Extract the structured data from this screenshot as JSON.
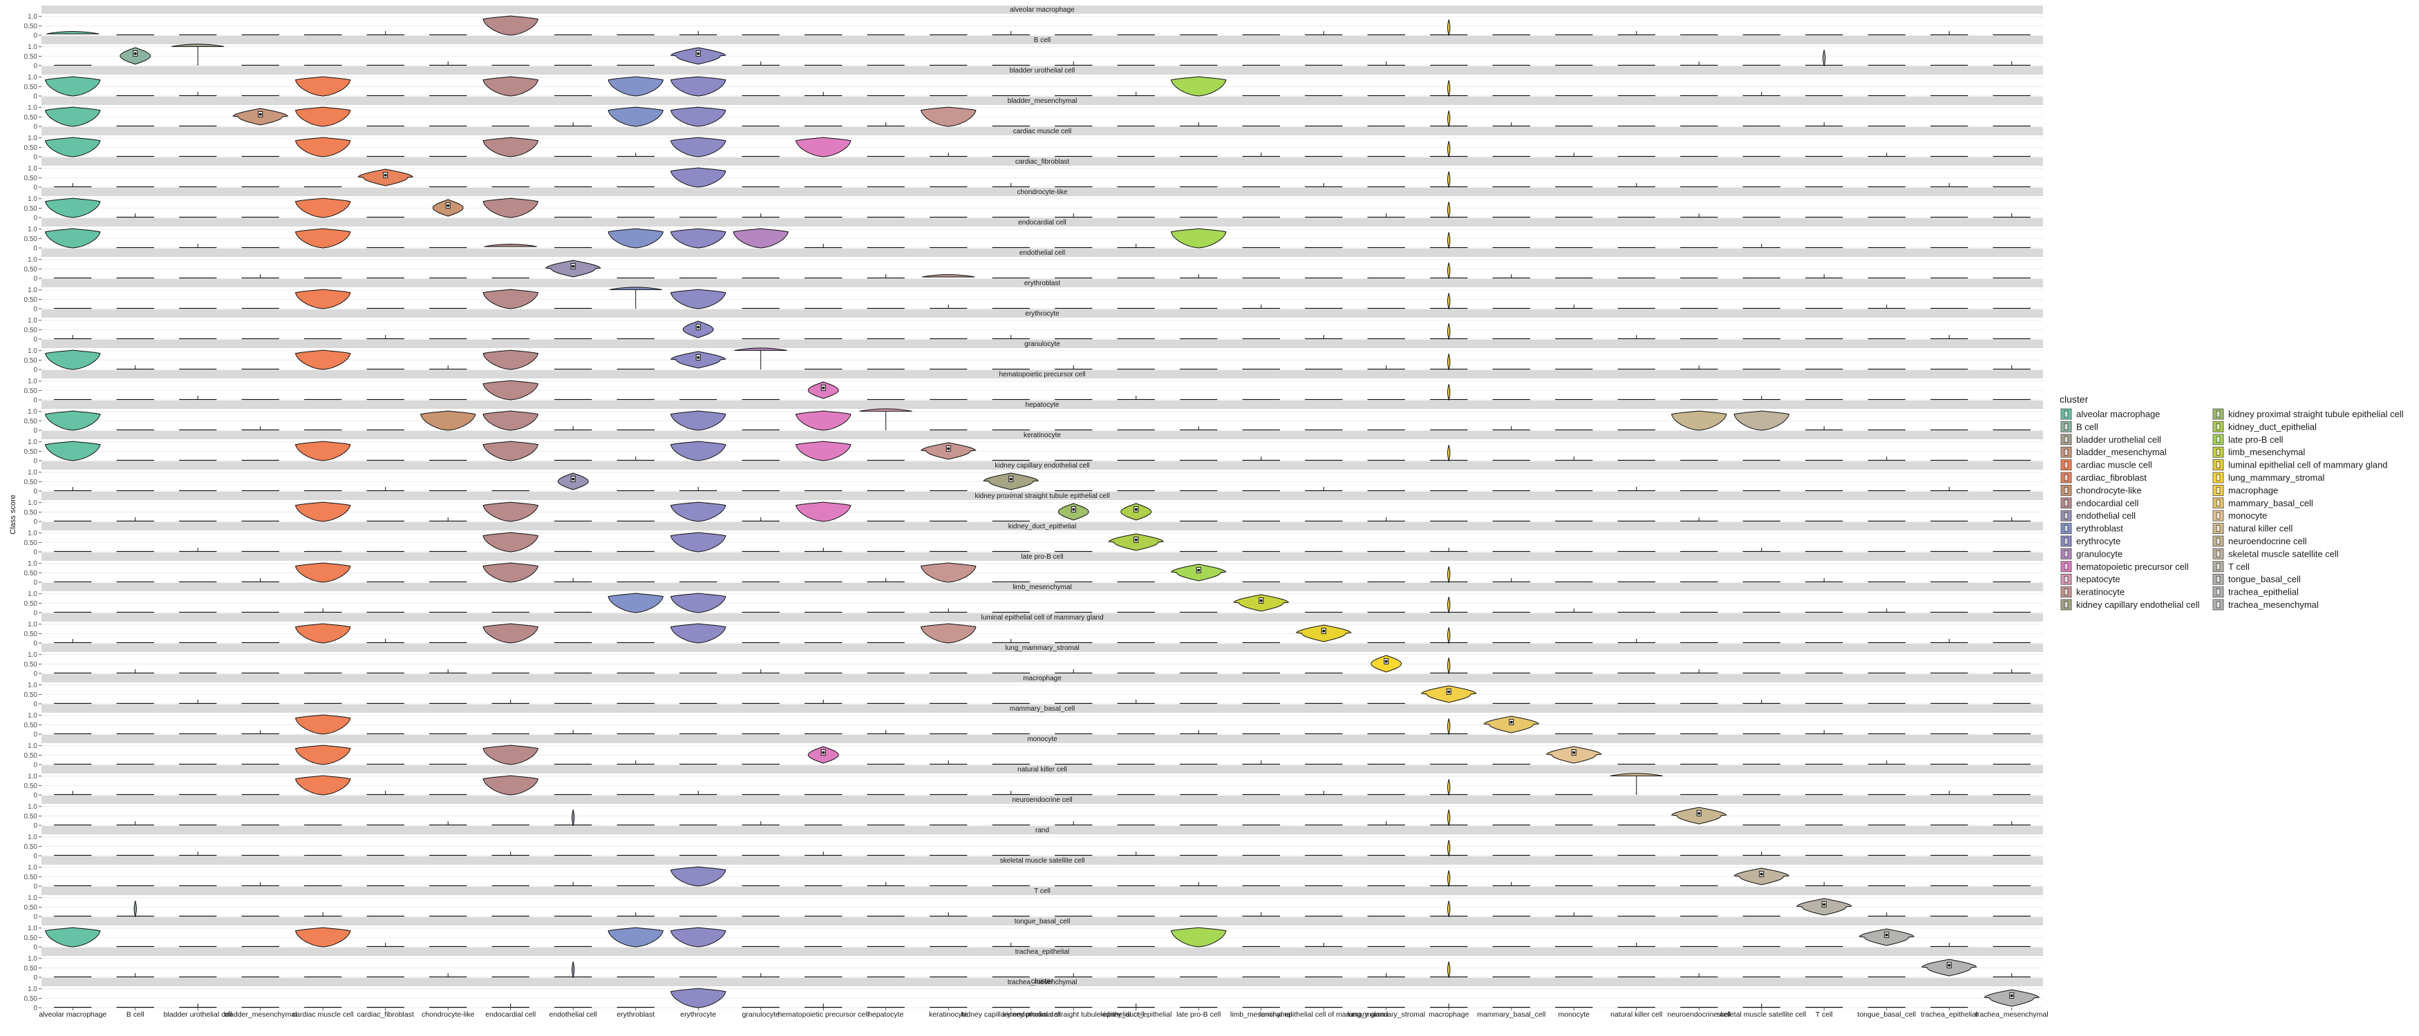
{
  "chart_data": {
    "type": "violin",
    "xlabel": "cluster",
    "ylabel": "Class score",
    "y_ticks": [
      "0",
      "0.50",
      "1.0"
    ],
    "ylim": [
      0,
      1.1
    ],
    "grid": true,
    "legend_position": "right",
    "legend_title": "cluster",
    "categories": [
      "alveolar macrophage",
      "B cell",
      "bladder urothelial cell",
      "bladder_mesenchymal",
      "cardiac muscle cell",
      "cardiac_fibroblast",
      "chondrocyte-like",
      "endocardial cell",
      "endothelial cell",
      "erythroblast",
      "erythrocyte",
      "granulocyte",
      "hematopoietic precursor cell",
      "hepatocyte",
      "keratinocyte",
      "kidney capillary endothelial cell",
      "kidney proximal straight tubule epithelial cell",
      "kidney_duct_epithelial",
      "late pro-B cell",
      "limb_mesenchymal",
      "luminal epithelial cell of mammary gland",
      "lung_mammary_stromal",
      "macrophage",
      "mammary_basal_cell",
      "monocyte",
      "natural killer cell",
      "neuroendocrine cell",
      "skeletal muscle satellite cell",
      "T cell",
      "tongue_basal_cell",
      "trachea_epithelial",
      "trachea_mesenchymal"
    ],
    "panels": [
      "alveolar macrophage",
      "B cell",
      "bladder urothelial cell",
      "bladder_mesenchymal",
      "cardiac muscle cell",
      "cardiac_fibroblast",
      "chondrocyte-like",
      "endocardial cell",
      "endothelial cell",
      "erythroblast",
      "erythrocyte",
      "granulocyte",
      "hematopoietic precursor cell",
      "hepatocyte",
      "keratinocyte",
      "kidney capillary endothelial cell",
      "kidney proximal straight tubule epithelial cell",
      "kidney_duct_epithelial",
      "late pro-B cell",
      "limb_mesenchymal",
      "luminal epithelial cell of mammary gland",
      "lung_mammary_stromal",
      "macrophage",
      "mammary_basal_cell",
      "monocyte",
      "natural killer cell",
      "neuroendocrine cell",
      "rand",
      "skeletal muscle satellite cell",
      "T cell",
      "tongue_basal_cell",
      "trachea_epithelial",
      "trachea_mesenchymal"
    ],
    "colors": [
      "#66c2a5",
      "#8bb5a0",
      "#a9a48f",
      "#c9977b",
      "#f08055",
      "#e9835c",
      "#c99470",
      "#b98a8a",
      "#9b93b3",
      "#8193c9",
      "#8d8ac5",
      "#b586c0",
      "#e07dc0",
      "#d89ab5",
      "#c79690",
      "#a5a584",
      "#9fbf6a",
      "#b0cf4b",
      "#a6d854",
      "#c9d43c",
      "#e9d330",
      "#ffd92f",
      "#f2d048",
      "#e8c66a",
      "#e5c494",
      "#d9bb8f",
      "#c8b690",
      "#c0b49e",
      "#b8b3a9",
      "#b5b3b0",
      "#b3b3b3",
      "#b3b3b3"
    ],
    "big_violins": [
      [
        [
          0,
          "flat"
        ],
        [
          7,
          "full"
        ],
        [
          22,
          "spike"
        ]
      ],
      [
        [
          1,
          "narrow"
        ],
        [
          2,
          "line"
        ],
        [
          10,
          "wide"
        ],
        [
          28,
          "spike"
        ]
      ],
      [
        [
          0,
          "full"
        ],
        [
          4,
          "full"
        ],
        [
          7,
          "full"
        ],
        [
          9,
          "full"
        ],
        [
          10,
          "full"
        ],
        [
          18,
          "full"
        ],
        [
          22,
          "spike"
        ]
      ],
      [
        [
          0,
          "full"
        ],
        [
          3,
          "wide"
        ],
        [
          4,
          "full"
        ],
        [
          9,
          "full"
        ],
        [
          10,
          "full"
        ],
        [
          14,
          "full"
        ],
        [
          22,
          "spike"
        ]
      ],
      [
        [
          0,
          "full"
        ],
        [
          4,
          "full"
        ],
        [
          7,
          "full"
        ],
        [
          10,
          "full"
        ],
        [
          12,
          "full"
        ],
        [
          22,
          "spike"
        ]
      ],
      [
        [
          5,
          "wide"
        ],
        [
          10,
          "full"
        ],
        [
          22,
          "spike"
        ]
      ],
      [
        [
          0,
          "full"
        ],
        [
          4,
          "full"
        ],
        [
          6,
          "narrow"
        ],
        [
          7,
          "full"
        ],
        [
          22,
          "spike"
        ]
      ],
      [
        [
          0,
          "full"
        ],
        [
          4,
          "full"
        ],
        [
          7,
          "flat"
        ],
        [
          9,
          "full"
        ],
        [
          10,
          "full"
        ],
        [
          11,
          "full"
        ],
        [
          18,
          "full"
        ],
        [
          22,
          "spike"
        ]
      ],
      [
        [
          8,
          "wide"
        ],
        [
          14,
          "flat"
        ],
        [
          22,
          "spike"
        ]
      ],
      [
        [
          4,
          "full"
        ],
        [
          7,
          "full"
        ],
        [
          9,
          "line"
        ],
        [
          10,
          "full"
        ],
        [
          22,
          "spike"
        ]
      ],
      [
        [
          10,
          "narrow"
        ],
        [
          22,
          "spike"
        ]
      ],
      [
        [
          0,
          "full"
        ],
        [
          4,
          "full"
        ],
        [
          7,
          "full"
        ],
        [
          10,
          "wide"
        ],
        [
          11,
          "line"
        ],
        [
          22,
          "spike"
        ]
      ],
      [
        [
          7,
          "full"
        ],
        [
          12,
          "narrow"
        ],
        [
          22,
          "spike"
        ]
      ],
      [
        [
          0,
          "full"
        ],
        [
          6,
          "full"
        ],
        [
          7,
          "full"
        ],
        [
          10,
          "full"
        ],
        [
          12,
          "full"
        ],
        [
          13,
          "line"
        ],
        [
          26,
          "full"
        ],
        [
          27,
          "full"
        ]
      ],
      [
        [
          0,
          "full"
        ],
        [
          4,
          "full"
        ],
        [
          7,
          "full"
        ],
        [
          10,
          "full"
        ],
        [
          12,
          "full"
        ],
        [
          14,
          "wide"
        ],
        [
          22,
          "spike"
        ]
      ],
      [
        [
          8,
          "narrow"
        ],
        [
          15,
          "wide"
        ]
      ],
      [
        [
          4,
          "full"
        ],
        [
          7,
          "full"
        ],
        [
          10,
          "full"
        ],
        [
          12,
          "full"
        ],
        [
          16,
          "narrow"
        ],
        [
          17,
          "narrow"
        ]
      ],
      [
        [
          7,
          "full"
        ],
        [
          10,
          "full"
        ],
        [
          17,
          "wide"
        ]
      ],
      [
        [
          4,
          "full"
        ],
        [
          7,
          "full"
        ],
        [
          14,
          "full"
        ],
        [
          18,
          "wide"
        ],
        [
          22,
          "spike"
        ]
      ],
      [
        [
          9,
          "full"
        ],
        [
          10,
          "full"
        ],
        [
          19,
          "wide"
        ],
        [
          22,
          "spike"
        ]
      ],
      [
        [
          4,
          "full"
        ],
        [
          7,
          "full"
        ],
        [
          10,
          "full"
        ],
        [
          14,
          "full"
        ],
        [
          20,
          "wide"
        ],
        [
          22,
          "spike"
        ]
      ],
      [
        [
          21,
          "narrow"
        ],
        [
          22,
          "spike"
        ]
      ],
      [
        [
          22,
          "wide"
        ]
      ],
      [
        [
          4,
          "full"
        ],
        [
          22,
          "spike"
        ],
        [
          23,
          "wide"
        ]
      ],
      [
        [
          4,
          "full"
        ],
        [
          7,
          "full"
        ],
        [
          12,
          "narrow"
        ],
        [
          24,
          "wide"
        ]
      ],
      [
        [
          4,
          "full"
        ],
        [
          7,
          "full"
        ],
        [
          22,
          "spike"
        ],
        [
          25,
          "line"
        ]
      ],
      [
        [
          8,
          "spike"
        ],
        [
          22,
          "spike"
        ],
        [
          26,
          "wide"
        ]
      ],
      [
        [
          22,
          "spike"
        ]
      ],
      [
        [
          10,
          "full"
        ],
        [
          22,
          "spike"
        ],
        [
          27,
          "wide"
        ]
      ],
      [
        [
          1,
          "spike"
        ],
        [
          22,
          "spike"
        ],
        [
          28,
          "wide"
        ]
      ],
      [
        [
          0,
          "full"
        ],
        [
          4,
          "full"
        ],
        [
          9,
          "full"
        ],
        [
          10,
          "full"
        ],
        [
          18,
          "full"
        ],
        [
          29,
          "wide"
        ]
      ],
      [
        [
          8,
          "spike"
        ],
        [
          22,
          "spike"
        ],
        [
          30,
          "wide"
        ]
      ],
      [
        [
          10,
          "full"
        ],
        [
          31,
          "wide"
        ]
      ]
    ]
  }
}
